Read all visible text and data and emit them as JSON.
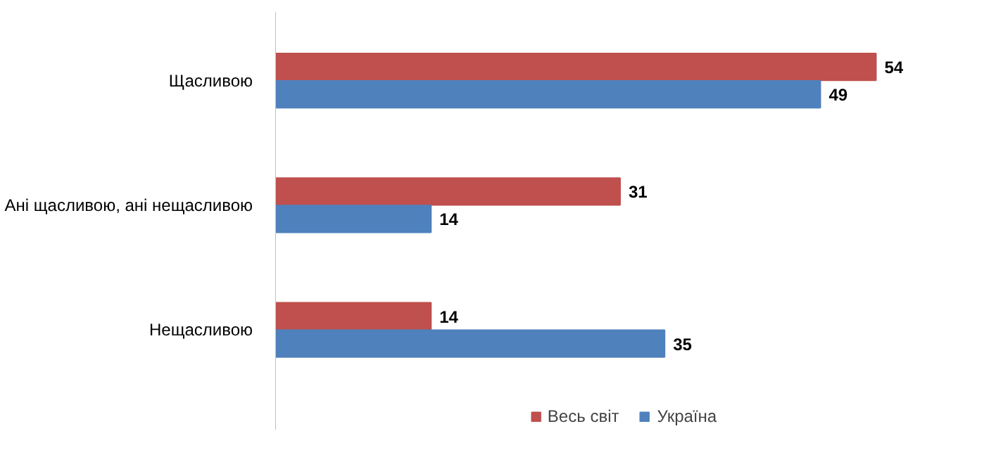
{
  "chart_data": {
    "type": "bar",
    "orientation": "horizontal",
    "categories": [
      "Щасливою",
      "Ані щасливою, ані нещасливою",
      "Нещасливою"
    ],
    "series": [
      {
        "name": "Весь світ",
        "color": "#c0504d",
        "values": [
          54,
          31,
          14
        ]
      },
      {
        "name": "Україна",
        "color": "#4f81bd",
        "values": [
          49,
          14,
          35
        ]
      }
    ],
    "data_labels": true,
    "legend": "bottom"
  }
}
